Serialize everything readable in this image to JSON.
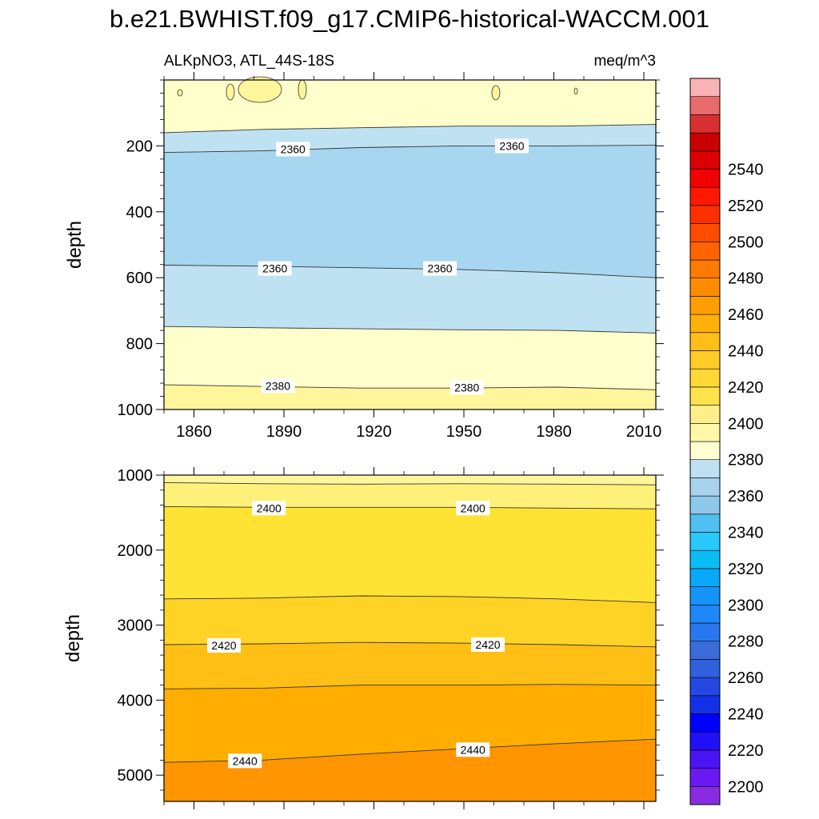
{
  "title": "b.e21.BWHIST.f09_g17.CMIP6-historical-WACCM.001",
  "subtitle_left": "ALKpNO3, ATL_44S-18S",
  "subtitle_right": "meq/m^3",
  "chart_data": [
    {
      "type": "heatmap",
      "panel": "upper",
      "ylabel": "depth",
      "xlim": [
        1850,
        2014
      ],
      "ylim": [
        1000,
        0
      ],
      "x_ticks": [
        1860,
        1890,
        1920,
        1950,
        1980,
        2010
      ],
      "y_ticks": [
        200,
        400,
        600,
        800,
        1000
      ],
      "contour_levels": [
        2360,
        2370,
        2380,
        2390
      ],
      "boundaries": [
        {
          "level": 2370,
          "depth": [
            160,
            150,
            145,
            140,
            140,
            135
          ]
        },
        {
          "level": 2360,
          "depth": [
            220,
            215,
            205,
            200,
            200,
            198
          ]
        },
        {
          "level": 2360,
          "depth": [
            562,
            565,
            570,
            575,
            585,
            600
          ]
        },
        {
          "level": 2370,
          "depth": [
            748,
            752,
            755,
            758,
            760,
            768
          ]
        },
        {
          "level": 2380,
          "depth": [
            925,
            930,
            935,
            935,
            932,
            940
          ]
        }
      ],
      "contour_labels": [
        {
          "text": "2360",
          "x": 1893,
          "depth": 210
        },
        {
          "text": "2360",
          "x": 1966,
          "depth": 200
        },
        {
          "text": "2360",
          "x": 1887,
          "depth": 572
        },
        {
          "text": "2360",
          "x": 1942,
          "depth": 572
        },
        {
          "text": "2380",
          "x": 1888,
          "depth": 928
        },
        {
          "text": "2380",
          "x": 1951,
          "depth": 933
        }
      ]
    },
    {
      "type": "heatmap",
      "panel": "lower",
      "ylabel": "depth",
      "xlim": [
        1850,
        2014
      ],
      "ylim": [
        5350,
        1000
      ],
      "y_ticks": [
        1000,
        2000,
        3000,
        4000,
        5000
      ],
      "contour_levels": [
        2390,
        2400,
        2410,
        2420,
        2430,
        2440
      ],
      "boundaries": [
        {
          "level": 2390,
          "depth": [
            1100,
            1115,
            1120,
            1115,
            1120,
            1130
          ]
        },
        {
          "level": 2400,
          "depth": [
            1420,
            1430,
            1430,
            1430,
            1440,
            1450
          ]
        },
        {
          "level": 2410,
          "depth": [
            2650,
            2640,
            2610,
            2620,
            2650,
            2700
          ]
        },
        {
          "level": 2420,
          "depth": [
            3260,
            3250,
            3230,
            3240,
            3260,
            3290
          ]
        },
        {
          "level": 2430,
          "depth": [
            3850,
            3840,
            3800,
            3800,
            3790,
            3800
          ]
        },
        {
          "level": 2440,
          "depth": [
            4830,
            4800,
            4720,
            4650,
            4580,
            4520
          ]
        }
      ],
      "contour_labels": [
        {
          "text": "2400",
          "x": 1885,
          "depth": 1440
        },
        {
          "text": "2400",
          "x": 1953,
          "depth": 1440
        },
        {
          "text": "2420",
          "x": 1870,
          "depth": 3270
        },
        {
          "text": "2420",
          "x": 1958,
          "depth": 3260
        },
        {
          "text": "2440",
          "x": 1877,
          "depth": 4810
        },
        {
          "text": "2440",
          "x": 1953,
          "depth": 4660
        }
      ]
    }
  ],
  "colorbar": {
    "tick_labels": [
      "2200",
      "2220",
      "2240",
      "2260",
      "2280",
      "2300",
      "2320",
      "2340",
      "2360",
      "2380",
      "2400",
      "2420",
      "2440",
      "2460",
      "2480",
      "2500",
      "2520",
      "2540"
    ],
    "colors": [
      "#8a2be2",
      "#6a1af0",
      "#4a14f5",
      "#2010f8",
      "#0000ff",
      "#1230e8",
      "#2448e0",
      "#3060dc",
      "#3c6cda",
      "#2878f0",
      "#1e88f8",
      "#1494f8",
      "#0aa8f8",
      "#0cbcf6",
      "#28c8f8",
      "#50c0f0",
      "#8ec8ea",
      "#a8d2ee",
      "#bee0f2",
      "#ffffd2",
      "#fff8a8",
      "#fff08a",
      "#ffe34a",
      "#ffd838",
      "#ffcc28",
      "#ffbe18",
      "#ffb00a",
      "#ff9e00",
      "#ff8c00",
      "#ff7a00",
      "#ff6400",
      "#ff4c00",
      "#ff3000",
      "#ff1800",
      "#f00000",
      "#dc0000",
      "#c80000",
      "#d83030",
      "#e86a6a",
      "#f8b4b4"
    ],
    "value_range": [
      2190,
      2560
    ],
    "step": 10
  },
  "colors": {
    "c2350": "#a6d6f0",
    "c2360": "#bfe2f2",
    "c2370": "#ffffcc",
    "c2380": "#fff59a",
    "c2390": "#fff07a",
    "c2400": "#ffe334",
    "c2410": "#ffd226",
    "c2420": "#ffbf14",
    "c2430": "#ffad00",
    "c2440": "#ff9500"
  }
}
